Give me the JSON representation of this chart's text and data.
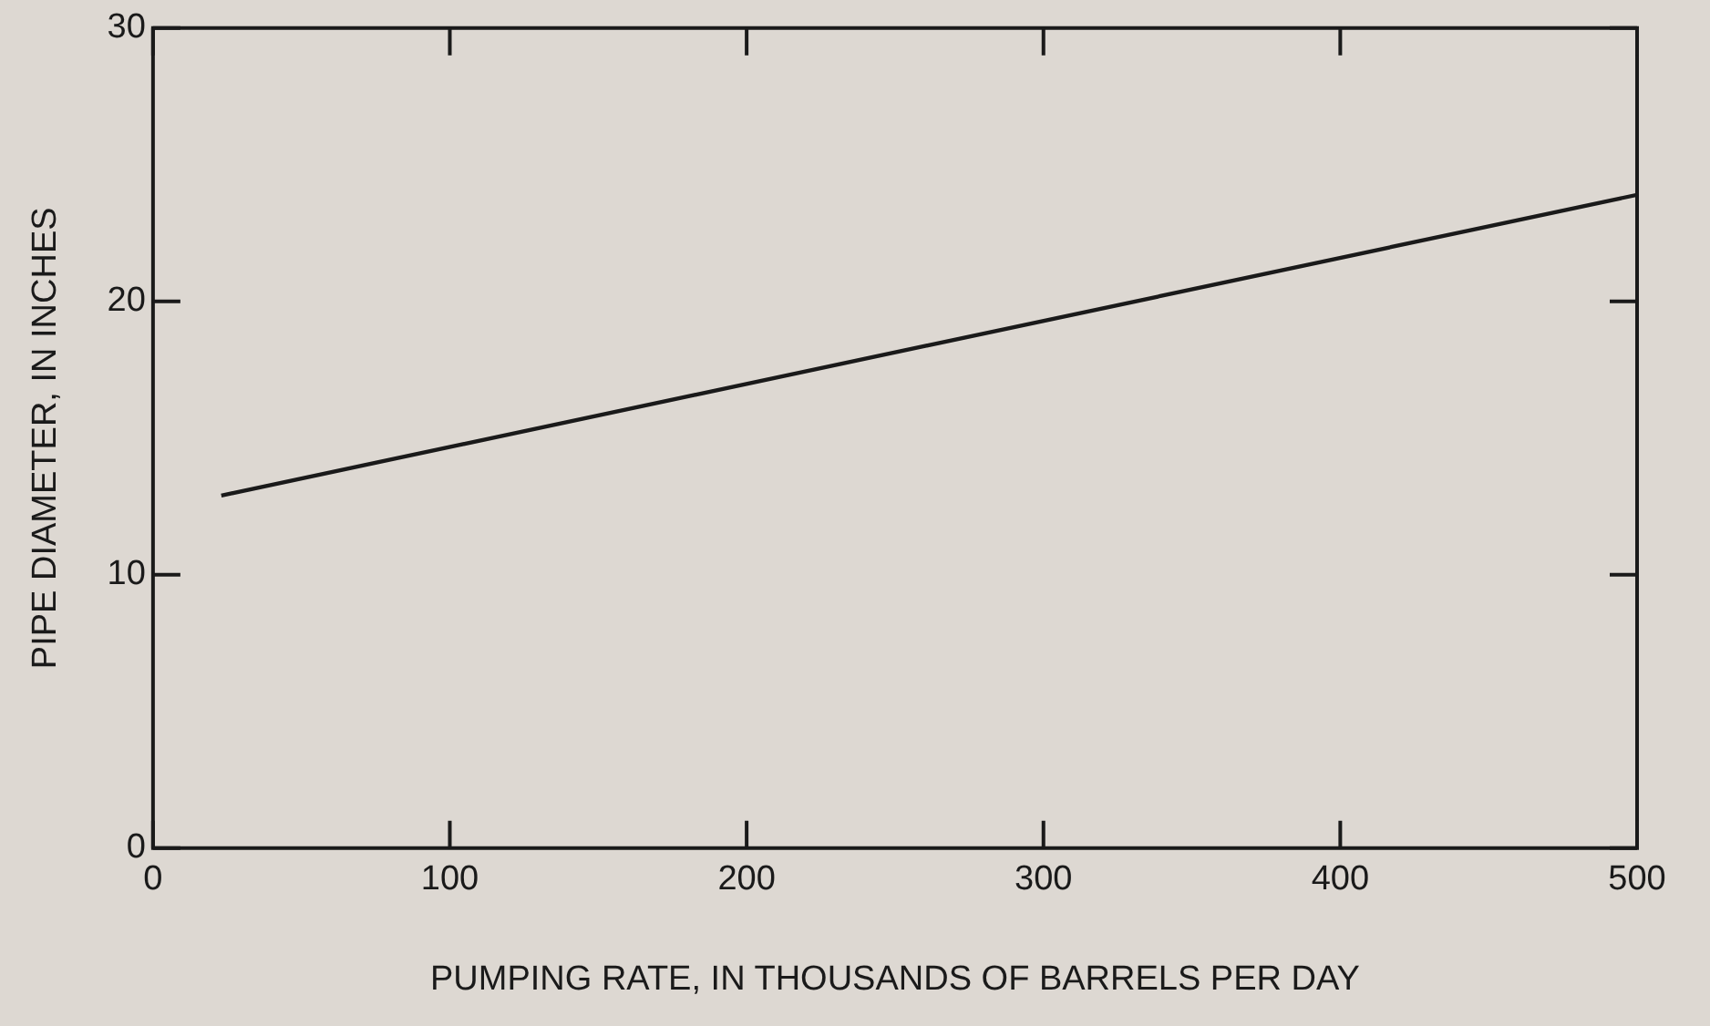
{
  "chart_data": {
    "type": "line",
    "xlabel": "PUMPING RATE, IN THOUSANDS OF BARRELS PER DAY",
    "ylabel": "PIPE DIAMETER, IN INCHES",
    "series": [
      {
        "color": "#1a1a1a",
        "x": [
          23,
          500
        ],
        "values": [
          12.9,
          23.9
        ]
      }
    ],
    "xlim": [
      0,
      500
    ],
    "xticks": [
      0,
      100,
      200,
      300,
      400,
      500
    ],
    "ylim": [
      0,
      30
    ],
    "yticks": [
      0,
      10,
      20,
      30
    ],
    "grid": false,
    "legend": false,
    "marker": "none",
    "line_style": "solid"
  }
}
